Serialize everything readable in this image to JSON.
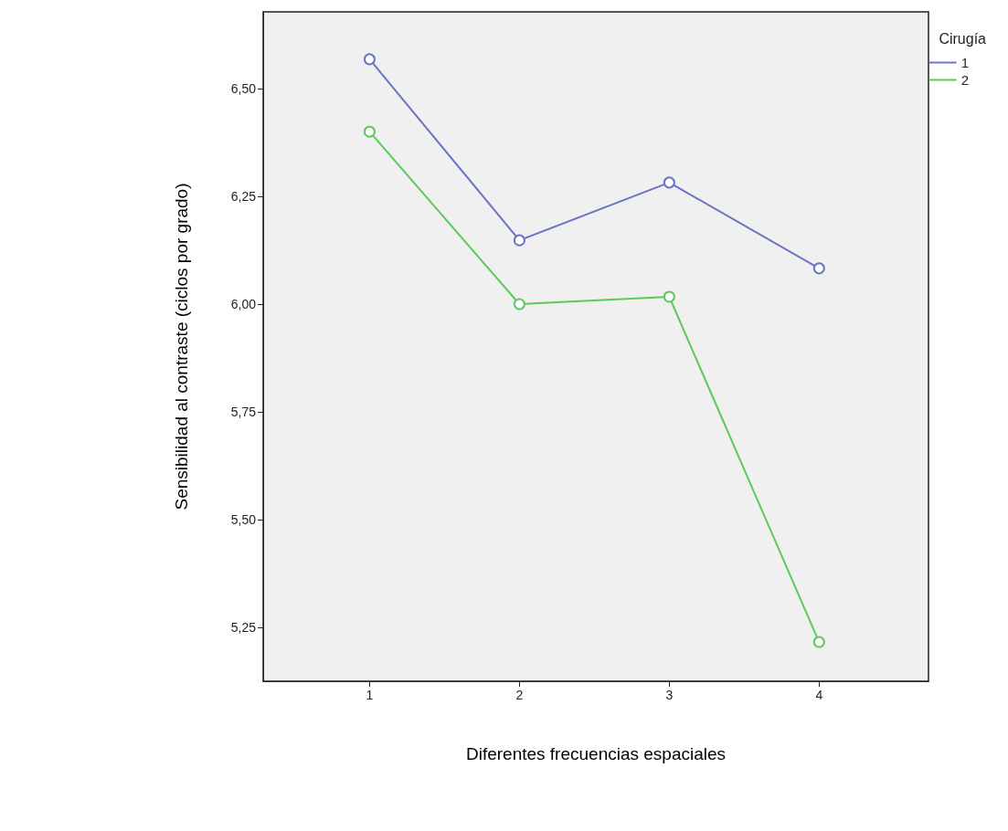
{
  "chart_data": {
    "type": "line",
    "xlabel": "Diferentes frecuencias espaciales",
    "ylabel": "Sensibilidad al contraste (ciclos por grado)",
    "legend_title": "Cirugía",
    "x": [
      1,
      2,
      3,
      4
    ],
    "series": [
      {
        "name": "1",
        "color": "#6b74c4",
        "values": [
          6.568,
          6.148,
          6.282,
          6.083
        ]
      },
      {
        "name": "2",
        "color": "#5cc95c",
        "values": [
          6.4,
          6.0,
          6.017,
          5.216
        ]
      }
    ],
    "xlim": [
      0.29,
      4.73
    ],
    "xticks": [
      1,
      2,
      3,
      4
    ],
    "ylim": [
      5.125,
      6.678
    ],
    "yticks": [
      {
        "value": 5.25,
        "label": "5,25"
      },
      {
        "value": 5.5,
        "label": "5,50"
      },
      {
        "value": 5.75,
        "label": "5,75"
      },
      {
        "value": 6.0,
        "label": "6,00"
      },
      {
        "value": 6.25,
        "label": "6,25"
      },
      {
        "value": 6.5,
        "label": "6,50"
      }
    ],
    "grid": false,
    "legend": "top right",
    "marker": "circle",
    "line_style": "solid"
  }
}
